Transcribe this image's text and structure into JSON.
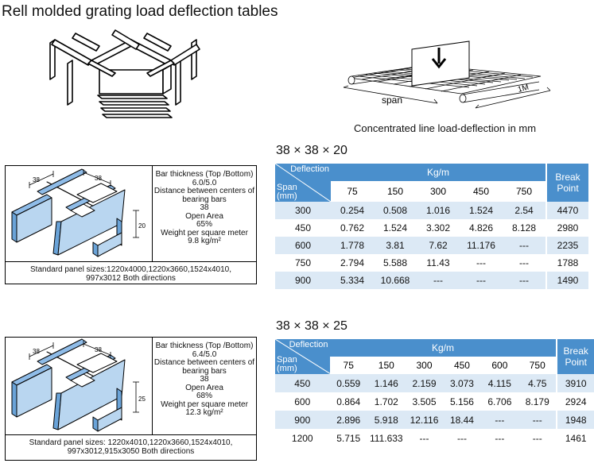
{
  "title": "Rell molded grating load deflection tables",
  "figure_caption": "Concentrated line load-deflection in mm",
  "figure_labels": {
    "span": "span",
    "width": "1M"
  },
  "colors": {
    "header": "#4a8fcc",
    "row_alt": "#dce9f5",
    "grating_fill": "#8fbce8"
  },
  "headers": {
    "deflection": "Deflection",
    "span": "Span",
    "span_unit": "(mm)",
    "load": "Kg/m",
    "break_point_1": "Break",
    "break_point_2": "Point"
  },
  "sections": [
    {
      "subtitle": "38 × 38 × 20",
      "dims": {
        "a": "38",
        "b": "38",
        "height": "20"
      },
      "spec": {
        "l1": "Bar thickness (Top /Bottom)",
        "l2": "6.0/5.0",
        "l3": "Distance between centers of",
        "l4": "bearing bars",
        "l5": "38",
        "l6": "Open Area",
        "l7": "65%",
        "l8": "Weight per square meter",
        "l9": "9.8 kg/m²"
      },
      "panel_1": "Standard panel sizes:1220x4000,1220x3660,1524x4010,",
      "panel_2": "997x3012 Both directions",
      "loads": [
        "75",
        "150",
        "300",
        "450",
        "750"
      ],
      "rows": [
        {
          "span": "300",
          "values": [
            "0.254",
            "0.508",
            "1.016",
            "1.524",
            "2.54"
          ],
          "break": "4470"
        },
        {
          "span": "450",
          "values": [
            "0.762",
            "1.524",
            "3.302",
            "4.826",
            "8.128"
          ],
          "break": "2980"
        },
        {
          "span": "600",
          "values": [
            "1.778",
            "3.81",
            "7.62",
            "11.176",
            "---"
          ],
          "break": "2235"
        },
        {
          "span": "750",
          "values": [
            "2.794",
            "5.588",
            "11.43",
            "---",
            "---"
          ],
          "break": "1788"
        },
        {
          "span": "900",
          "values": [
            "5.334",
            "10.668",
            "---",
            "---",
            "---"
          ],
          "break": "1490"
        }
      ]
    },
    {
      "subtitle": "38 × 38 × 25",
      "dims": {
        "a": "38",
        "b": "38",
        "height": "25"
      },
      "spec": {
        "l1": "Bar thickness (Top /Bottom)",
        "l2": "6.4/5.0",
        "l3": "Distance between centers of",
        "l4": "bearing bars",
        "l5": "38",
        "l6": "Open Area",
        "l7": "68%",
        "l8": "Weight per square meter",
        "l9": "12.3 kg/m²"
      },
      "panel_1": "Standard panel sizes: 1220x4010,1220x3660,1524x4010,",
      "panel_2": "997x3012,915x3050 Both directions",
      "loads": [
        "75",
        "150",
        "300",
        "450",
        "600",
        "750"
      ],
      "rows": [
        {
          "span": "450",
          "values": [
            "0.559",
            "1.146",
            "2.159",
            "3.073",
            "4.115",
            "4.75"
          ],
          "break": "3910"
        },
        {
          "span": "600",
          "values": [
            "0.864",
            "1.702",
            "3.505",
            "5.156",
            "6.706",
            "8.179"
          ],
          "break": "2924"
        },
        {
          "span": "900",
          "values": [
            "2.896",
            "5.918",
            "12.116",
            "18.44",
            "---",
            "---"
          ],
          "break": "1948"
        },
        {
          "span": "1200",
          "values": [
            "5.715",
            "111.633",
            "---",
            "---",
            "---",
            "---"
          ],
          "break": "1461"
        }
      ]
    }
  ]
}
